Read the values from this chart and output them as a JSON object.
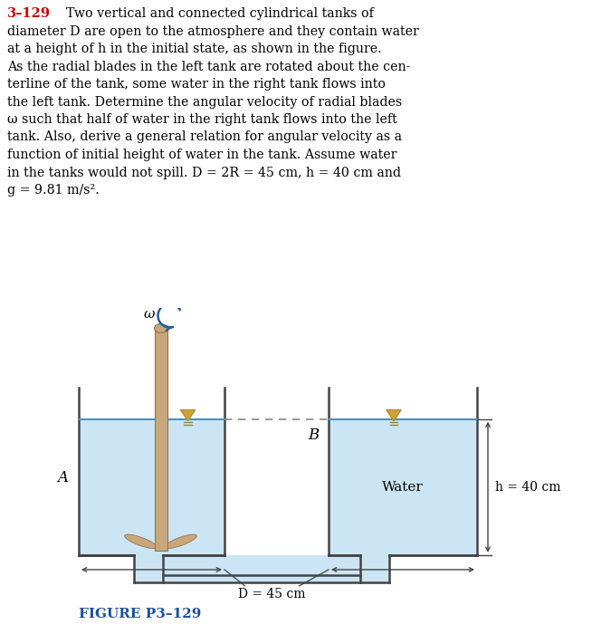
{
  "bg_color": "#ffffff",
  "text_color": "#000000",
  "water_color": "#cce5f5",
  "water_edge_color": "#4a90c4",
  "tank_edge_color": "#444444",
  "shaft_color": "#c8a87a",
  "shaft_edge": "#9a7050",
  "blade_color": "#c8a87a",
  "arrow_color": "#2060a0",
  "dashed_color": "#888888",
  "triangle_color": "#d4a030",
  "triangle_edge": "#888840",
  "red_color": "#cc0000",
  "blue_label_color": "#1a4fa0",
  "problem_number": "3–129",
  "figure_label": "FIGURE P3–129",
  "label_A": "A",
  "label_B": "B",
  "label_omega": "ω",
  "label_water": "Water",
  "label_h": "h = 40 cm",
  "label_D": "D = 45 cm",
  "text_lines": [
    "  Two vertical and connected cylindrical tanks of",
    "diameter D are open to the atmosphere and they contain water",
    "at a height of h in the initial state, as shown in the figure.",
    "As the radial blades in the left tank are rotated about the cen-",
    "terline of the tank, some water in the right tank flows into",
    "the left tank. Determine the angular velocity of radial blades",
    "ω such that half of water in the right tank flows into the left",
    "tank. Also, derive a general relation for angular velocity as a",
    "function of initial height of water in the tank. Assume water",
    "in the tanks would not spill. D = 2R = 45 cm, h = 40 cm and",
    "g = 9.81 m/s²."
  ]
}
